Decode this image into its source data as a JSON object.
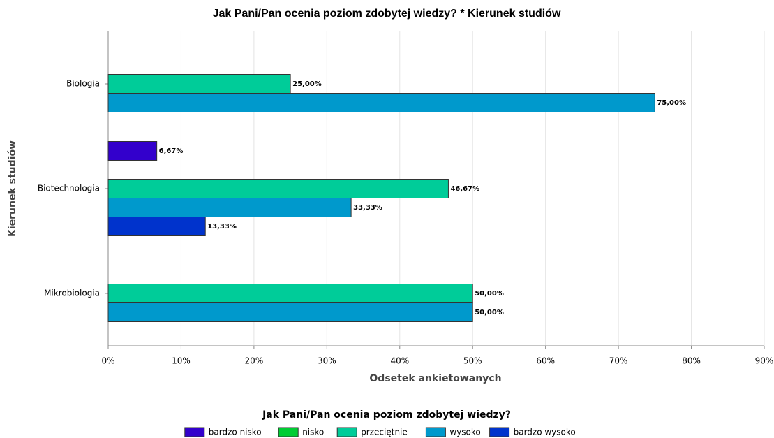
{
  "chart_data": {
    "type": "bar",
    "orientation": "horizontal",
    "title": "Jak Pani/Pan ocenia poziom zdobytej wiedzy? * Kierunek studiów",
    "xlabel": "Odsetek ankietowanych",
    "ylabel": "Kierunek studiów",
    "legend_title": "Jak Pani/Pan ocenia poziom zdobytej wiedzy?",
    "legend": "bottom",
    "grid": true,
    "categories": [
      "Biologia",
      "Biotechnologia",
      "Mikrobiologia"
    ],
    "series": [
      {
        "name": "bardzo nisko",
        "color": "#3300cc",
        "values": [
          null,
          6.67,
          null
        ],
        "value_labels": [
          null,
          "6,67%",
          null
        ]
      },
      {
        "name": "nisko",
        "color": "#00cc33",
        "values": [
          null,
          null,
          null
        ],
        "value_labels": [
          null,
          null,
          null
        ]
      },
      {
        "name": "przeciętnie",
        "color": "#00cc99",
        "values": [
          25,
          46.67,
          50
        ],
        "value_labels": [
          "25,00%",
          "46,67%",
          "50,00%"
        ]
      },
      {
        "name": "wysoko",
        "color": "#0099cc",
        "values": [
          75,
          33.33,
          50
        ],
        "value_labels": [
          "75,00%",
          "33,33%",
          "50,00%"
        ]
      },
      {
        "name": "bardzo wysoko",
        "color": "#0033cc",
        "values": [
          null,
          13.33,
          null
        ],
        "value_labels": [
          null,
          "13,33%",
          null
        ]
      }
    ],
    "xlim": [
      0,
      90
    ],
    "xticks": [
      {
        "value": 0,
        "label": "0%"
      },
      {
        "value": 10,
        "label": "10%"
      },
      {
        "value": 20,
        "label": "20%"
      },
      {
        "value": 30,
        "label": "30%"
      },
      {
        "value": 40,
        "label": "40%"
      },
      {
        "value": 50,
        "label": "50%"
      },
      {
        "value": 60,
        "label": "60%"
      },
      {
        "value": 70,
        "label": "70%"
      },
      {
        "value": 80,
        "label": "80%"
      },
      {
        "value": 90,
        "label": "90%"
      }
    ]
  }
}
